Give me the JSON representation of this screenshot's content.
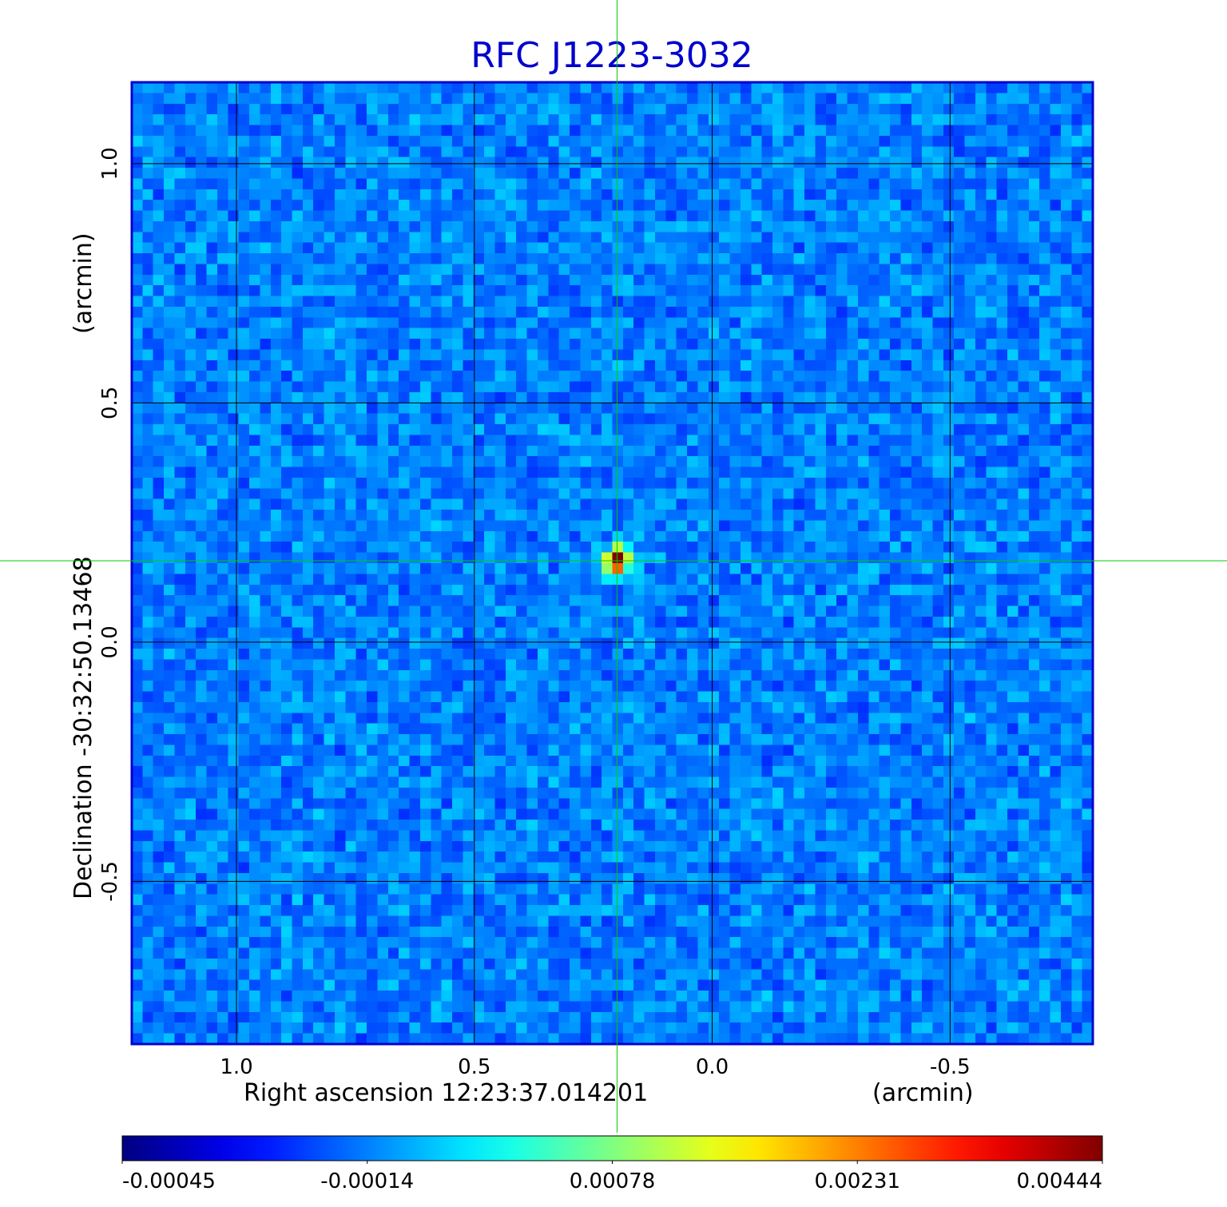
{
  "chart_data": {
    "type": "heatmap",
    "title": "RFC J1223-3032",
    "xlabel": "Right ascension  12:23:37.014201",
    "xunit": "(arcmin)",
    "ylabel": "Declination  -30:32:50.13468",
    "yunit": "(arcmin)",
    "xlim": [
      1.22,
      -0.8
    ],
    "ylim": [
      -0.84,
      1.17
    ],
    "x_ticks": [
      1.0,
      0.5,
      0.0,
      -0.5
    ],
    "x_tick_labels": [
      "1.0",
      "0.5",
      "0.0",
      "-0.5"
    ],
    "y_ticks": [
      1.0,
      0.5,
      0.0,
      -0.5
    ],
    "y_tick_labels": [
      "1.0",
      "0.5",
      "0.0",
      "-0.5"
    ],
    "grid": true,
    "colormap": "jet",
    "colorbar": {
      "min": -0.00045,
      "max": 0.00444,
      "ticks": [
        -0.00045,
        -0.00014,
        0.00078,
        0.00231,
        0.00444
      ],
      "tick_labels": [
        "-0.00045",
        "-0.00014",
        "0.00078",
        "0.00231",
        "0.00444"
      ]
    },
    "source": {
      "x": 0.2,
      "y": 0.17,
      "peak": 0.00444
    },
    "crosshair": {
      "x": 0.2,
      "y": 0.17
    },
    "colors": {
      "title": "#0000cc",
      "frame": "#0000cc",
      "crosshair": "#00cc00",
      "grid": "#000000"
    }
  }
}
